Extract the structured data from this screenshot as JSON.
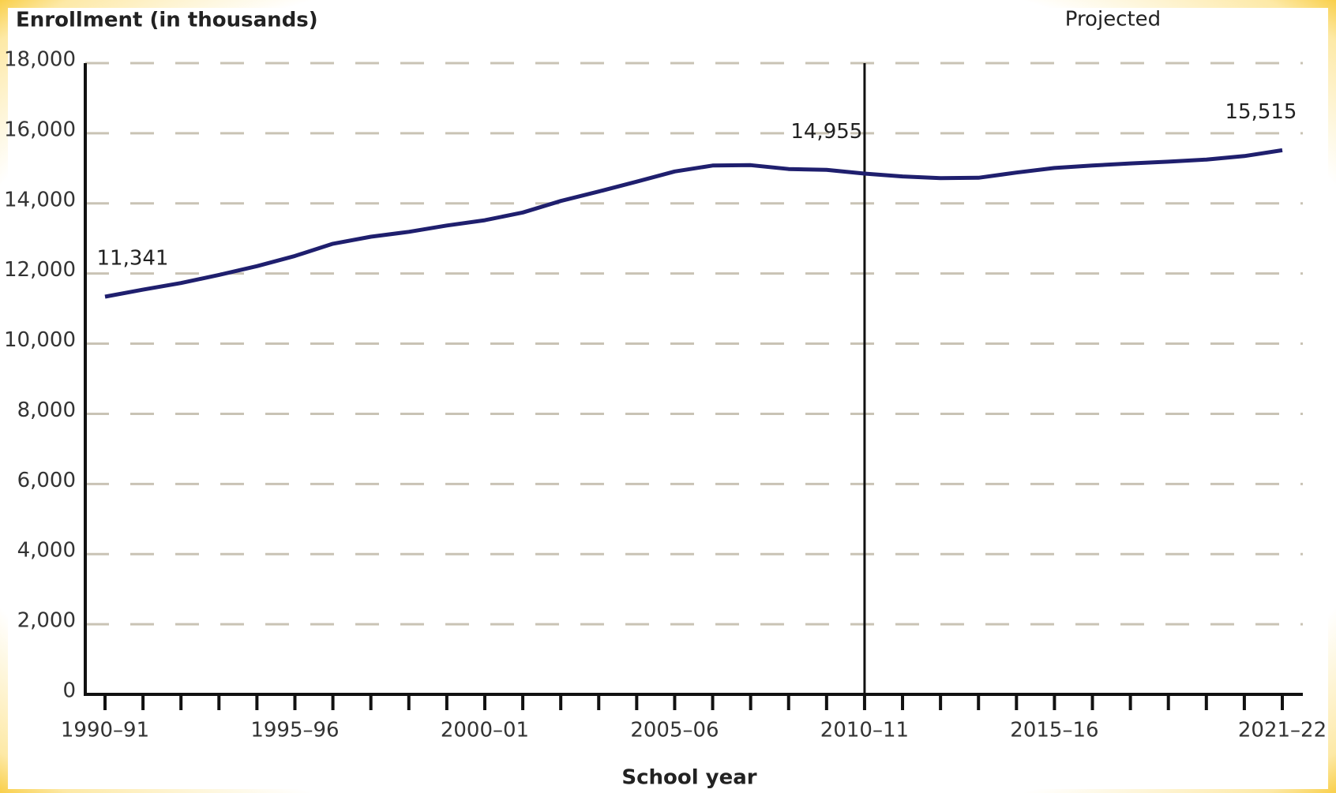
{
  "chart_data": {
    "type": "line",
    "y_axis_title": "Enrollment (in thousands)",
    "x_axis_title": "School year",
    "annotation": "Projected",
    "categories": [
      "1990–91",
      null,
      null,
      null,
      null,
      "1995–96",
      null,
      null,
      null,
      null,
      "2000–01",
      null,
      null,
      null,
      null,
      "2005–06",
      null,
      null,
      null,
      null,
      "2010–11",
      null,
      null,
      null,
      null,
      "2015–16",
      null,
      null,
      null,
      null,
      null,
      "2021–22"
    ],
    "values": [
      11341,
      11540,
      11730,
      11960,
      12210,
      12500,
      12850,
      13050,
      13190,
      13370,
      13520,
      13740,
      14070,
      14340,
      14620,
      14910,
      15080,
      15090,
      14980,
      14955,
      14850,
      14770,
      14720,
      14730,
      14880,
      15010,
      15080,
      15140,
      15190,
      15250,
      15350,
      15515
    ],
    "value_labels": [
      "11,341",
      null,
      null,
      null,
      null,
      null,
      null,
      null,
      null,
      null,
      null,
      null,
      null,
      null,
      null,
      null,
      null,
      null,
      null,
      "14,955",
      null,
      null,
      null,
      null,
      null,
      null,
      null,
      null,
      null,
      null,
      null,
      "15,515"
    ],
    "color": "#1f1f6e",
    "projection_start": "2010–11",
    "ylim": [
      0,
      18000
    ],
    "yticks": [
      0,
      {
        "value": 2000,
        "label": "2,000"
      },
      {
        "value": 4000,
        "label": "4,000"
      },
      {
        "value": 6000,
        "label": "6,000"
      },
      {
        "value": 8000,
        "label": "8,000"
      },
      {
        "value": 10000,
        "label": "10,000"
      },
      {
        "value": 12000,
        "label": "12,000"
      },
      {
        "value": 14000,
        "label": "14,000"
      },
      {
        "value": 16000,
        "label": "16,000"
      },
      {
        "value": 18000,
        "label": "18,000"
      }
    ],
    "grid": true
  }
}
